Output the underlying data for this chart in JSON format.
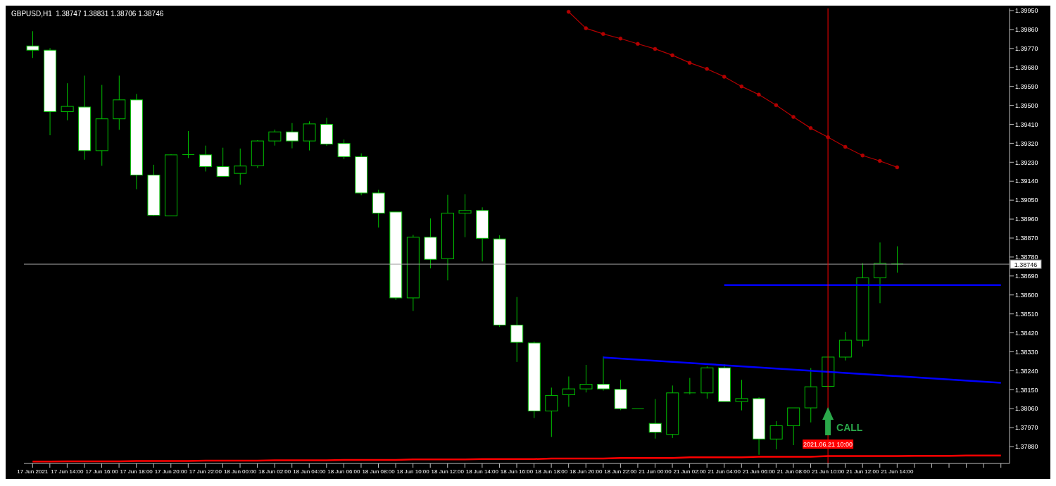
{
  "chart_data": {
    "type": "candlestick",
    "title": "GBPUSD,H1  1.38747 1.38831 1.38706 1.38746",
    "categories": [
      "17 Jun 2021",
      null,
      "17 Jun 14:00",
      null,
      "17 Jun 16:00",
      null,
      "17 Jun 18:00",
      null,
      "17 Jun 20:00",
      null,
      "17 Jun 22:00",
      null,
      "18 Jun 00:00",
      null,
      "18 Jun 02:00",
      null,
      "18 Jun 04:00",
      null,
      "18 Jun 06:00",
      null,
      "18 Jun 08:00",
      null,
      "18 Jun 10:00",
      null,
      "18 Jun 12:00",
      null,
      "18 Jun 14:00",
      null,
      "18 Jun 16:00",
      null,
      "18 Jun 18:00",
      null,
      "18 Jun 20:00",
      null,
      "18 Jun 22:00",
      null,
      "21 Jun 00:00",
      null,
      "21 Jun 02:00",
      null,
      "21 Jun 04:00",
      null,
      "21 Jun 06:00",
      null,
      "21 Jun 08:00",
      null,
      "21 Jun 10:00",
      null,
      "21 Jun 12:00",
      null,
      "21 Jun 14:00",
      null,
      null,
      null,
      null,
      null,
      null
    ],
    "ohlc": [
      [
        1.39782,
        1.39852,
        1.39725,
        1.39762
      ],
      [
        1.39762,
        1.39772,
        1.39358,
        1.3947
      ],
      [
        1.3947,
        1.39605,
        1.39429,
        1.39495
      ],
      [
        1.39492,
        1.39641,
        1.39242,
        1.39285
      ],
      [
        1.39285,
        1.39597,
        1.39213,
        1.39436
      ],
      [
        1.39436,
        1.39641,
        1.39384,
        1.39526
      ],
      [
        1.39526,
        1.39554,
        1.39102,
        1.39169
      ],
      [
        1.39169,
        1.39218,
        1.38975,
        1.38978
      ],
      [
        1.38975,
        1.39268,
        1.38975,
        1.39265
      ],
      [
        1.39265,
        1.39378,
        1.3925,
        1.39266
      ],
      [
        1.39265,
        1.39309,
        1.39186,
        1.39209
      ],
      [
        1.39209,
        1.39299,
        1.39163,
        1.39163
      ],
      [
        1.39177,
        1.39295,
        1.39123,
        1.39212
      ],
      [
        1.39213,
        1.39335,
        1.39203,
        1.39331
      ],
      [
        1.39331,
        1.39385,
        1.39309,
        1.39374
      ],
      [
        1.39374,
        1.39416,
        1.39296,
        1.39331
      ],
      [
        1.39331,
        1.39424,
        1.39286,
        1.39412
      ],
      [
        1.3941,
        1.39441,
        1.39308,
        1.39316
      ],
      [
        1.39319,
        1.39338,
        1.39245,
        1.39256
      ],
      [
        1.39256,
        1.39272,
        1.39073,
        1.39084
      ],
      [
        1.39084,
        1.39099,
        1.3892,
        1.38988
      ],
      [
        1.38994,
        1.38994,
        1.38576,
        1.38586
      ],
      [
        1.38586,
        1.38885,
        1.38524,
        1.38874
      ],
      [
        1.38874,
        1.38963,
        1.38726,
        1.38769
      ],
      [
        1.38772,
        1.39075,
        1.38669,
        1.38988
      ],
      [
        1.38988,
        1.39078,
        1.38874,
        1.39001
      ],
      [
        1.39001,
        1.39016,
        1.38759,
        1.38869
      ],
      [
        1.38866,
        1.38883,
        1.38448,
        1.38457
      ],
      [
        1.38457,
        1.3859,
        1.38282,
        1.38375
      ],
      [
        1.38372,
        1.38379,
        1.38016,
        1.38049
      ],
      [
        1.38049,
        1.3816,
        1.37926,
        1.38123
      ],
      [
        1.38126,
        1.38213,
        1.38069,
        1.38154
      ],
      [
        1.38154,
        1.38268,
        1.38137,
        1.38176
      ],
      [
        1.38176,
        1.38308,
        1.38146,
        1.38154
      ],
      [
        1.38152,
        1.38197,
        1.38053,
        1.3806
      ],
      [
        1.3806,
        1.3806,
        1.3806,
        1.3806
      ],
      [
        1.3799,
        1.38106,
        1.37918,
        1.37948
      ],
      [
        1.37938,
        1.3817,
        1.37921,
        1.38135
      ],
      [
        1.38135,
        1.38206,
        1.38128,
        1.38135
      ],
      [
        1.38135,
        1.38261,
        1.38108,
        1.38254
      ],
      [
        1.38254,
        1.38271,
        1.38094,
        1.38094
      ],
      [
        1.38094,
        1.38197,
        1.38052,
        1.38108
      ],
      [
        1.38108,
        1.38114,
        1.37841,
        1.37916
      ],
      [
        1.37916,
        1.38001,
        1.37867,
        1.37979
      ],
      [
        1.37979,
        1.38064,
        1.37887,
        1.38064
      ],
      [
        1.38064,
        1.38253,
        1.37995,
        1.38164
      ],
      [
        1.38166,
        1.38305,
        1.38166,
        1.38305
      ],
      [
        1.38305,
        1.38425,
        1.38289,
        1.38385
      ],
      [
        1.38385,
        1.38751,
        1.38355,
        1.38681
      ],
      [
        1.38681,
        1.38849,
        1.38561,
        1.3875
      ],
      [
        1.38747,
        1.38831,
        1.38706,
        1.38746
      ],
      null,
      null,
      null,
      null,
      null,
      null
    ],
    "series": [
      {
        "type": "line",
        "color": "#b40000",
        "marker": "circle",
        "values": [
          null,
          null,
          null,
          null,
          null,
          null,
          null,
          null,
          null,
          null,
          null,
          null,
          null,
          null,
          null,
          null,
          null,
          null,
          null,
          null,
          null,
          null,
          null,
          null,
          null,
          null,
          null,
          null,
          null,
          null,
          null,
          1.39944,
          1.39866,
          1.39839,
          1.39817,
          1.39792,
          1.39768,
          1.39738,
          1.39702,
          1.39673,
          1.39636,
          1.3959,
          1.39551,
          1.39501,
          1.39445,
          1.39392,
          1.39349,
          1.39303,
          1.39262,
          1.39236,
          1.39206,
          null,
          null,
          null,
          null,
          null,
          null
        ]
      },
      {
        "type": "line",
        "color": "#0000ff",
        "values": [
          null,
          null,
          null,
          null,
          null,
          null,
          null,
          null,
          null,
          null,
          null,
          null,
          null,
          null,
          null,
          null,
          null,
          null,
          null,
          null,
          null,
          null,
          null,
          null,
          null,
          null,
          null,
          null,
          null,
          null,
          null,
          null,
          null,
          1.38303,
          null,
          null,
          null,
          null,
          null,
          null,
          null,
          null,
          null,
          null,
          null,
          null,
          null,
          null,
          null,
          null,
          null,
          null,
          null,
          null,
          null,
          null,
          1.38183
        ]
      },
      {
        "type": "line",
        "color": "#0000ff",
        "values": [
          null,
          null,
          null,
          null,
          null,
          null,
          null,
          null,
          null,
          null,
          null,
          null,
          null,
          null,
          null,
          null,
          null,
          null,
          null,
          null,
          null,
          null,
          null,
          null,
          null,
          null,
          null,
          null,
          null,
          null,
          null,
          null,
          null,
          null,
          null,
          null,
          null,
          null,
          null,
          null,
          1.38647,
          null,
          null,
          null,
          null,
          null,
          null,
          null,
          null,
          null,
          null,
          null,
          null,
          null,
          null,
          null,
          1.38647
        ]
      },
      {
        "type": "line",
        "color": "#ff0000",
        "values": [
          1.37809,
          1.37809,
          1.3781,
          1.3781,
          1.3781,
          1.3781,
          1.37812,
          1.37812,
          1.37812,
          1.37812,
          1.37813,
          1.37813,
          1.37813,
          1.37813,
          1.37815,
          1.37815,
          1.37815,
          1.37815,
          1.37817,
          1.37817,
          1.37817,
          1.37817,
          1.37819,
          1.37819,
          1.37819,
          1.37819,
          1.37821,
          1.37821,
          1.37821,
          1.37821,
          1.37823,
          1.37823,
          1.37823,
          1.37823,
          1.37826,
          1.37826,
          1.37826,
          1.37826,
          1.37829,
          1.37829,
          1.37829,
          1.37829,
          1.37832,
          1.37832,
          1.37832,
          1.37832,
          1.37835,
          1.37835,
          1.37835,
          1.37835,
          1.37835,
          1.37836,
          1.37836,
          1.37836,
          1.37838,
          1.37838,
          1.37838
        ]
      }
    ],
    "ylim": [
      1.378,
      1.3996
    ],
    "yticks": [
      {
        "value": 1.3995,
        "label": "1.39950"
      },
      {
        "value": 1.3986,
        "label": "1.39860"
      },
      {
        "value": 1.3977,
        "label": "1.39770"
      },
      {
        "value": 1.3968,
        "label": "1.39680"
      },
      {
        "value": 1.3959,
        "label": "1.39590"
      },
      {
        "value": 1.395,
        "label": "1.39500"
      },
      {
        "value": 1.3941,
        "label": "1.39410"
      },
      {
        "value": 1.3932,
        "label": "1.39320"
      },
      {
        "value": 1.3923,
        "label": "1.39230"
      },
      {
        "value": 1.3914,
        "label": "1.39140"
      },
      {
        "value": 1.3905,
        "label": "1.39050"
      },
      {
        "value": 1.3896,
        "label": "1.38960"
      },
      {
        "value": 1.3887,
        "label": "1.38870"
      },
      {
        "value": 1.3878,
        "label": "1.38780"
      },
      {
        "value": 1.3869,
        "label": "1.38690"
      },
      {
        "value": 1.386,
        "label": "1.38600"
      },
      {
        "value": 1.3851,
        "label": "1.38510"
      },
      {
        "value": 1.3842,
        "label": "1.38420"
      },
      {
        "value": 1.3833,
        "label": "1.38330"
      },
      {
        "value": 1.3824,
        "label": "1.38240"
      },
      {
        "value": 1.3815,
        "label": "1.38150"
      },
      {
        "value": 1.3806,
        "label": "1.38060"
      },
      {
        "value": 1.3797,
        "label": "1.37970"
      },
      {
        "value": 1.3788,
        "label": "1.37880"
      }
    ],
    "ref_lines": [
      {
        "axis": "y",
        "value": 1.38746,
        "label": "1.38746",
        "color": "#a0a0a0"
      },
      {
        "axis": "x",
        "value": "21 Jun 10:00",
        "label": "2021.06.21 10:00",
        "color": "#ff0000"
      }
    ],
    "annotations": [
      "CALL"
    ]
  }
}
